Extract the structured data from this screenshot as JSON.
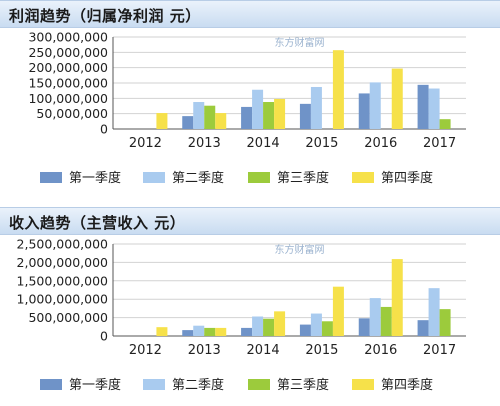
{
  "colors": {
    "q1": "#6f93c8",
    "q2": "#a9cbef",
    "q3": "#9ccb3c",
    "q4": "#f6e14a"
  },
  "profit": {
    "title": "利润趋势（归属净利润 元）",
    "watermark": "东方财富网"
  },
  "revenue": {
    "title": "收入趋势（主营收入 元）",
    "watermark": "东方财富网"
  },
  "chart_data": [
    {
      "type": "bar",
      "title": "利润趋势（归属净利润 元）",
      "categories": [
        "2012",
        "2013",
        "2014",
        "2015",
        "2016",
        "2017"
      ],
      "ylim": [
        0,
        300000000
      ],
      "yticks": [
        0,
        50000000,
        100000000,
        150000000,
        200000000,
        250000000,
        300000000
      ],
      "ytick_labels": [
        "0",
        "50,000,000",
        "100,000,000",
        "150,000,000",
        "200,000,000",
        "250,000,000",
        "300,000,000"
      ],
      "legend_position": "bottom",
      "series": [
        {
          "name": "第一季度",
          "values": [
            null,
            42000000,
            72000000,
            82000000,
            116000000,
            144000000
          ]
        },
        {
          "name": "第二季度",
          "values": [
            null,
            88000000,
            128000000,
            137000000,
            152000000,
            132000000
          ]
        },
        {
          "name": "第三季度",
          "values": [
            null,
            76000000,
            88000000,
            null,
            null,
            32000000
          ]
        },
        {
          "name": "第四季度",
          "values": [
            52000000,
            52000000,
            98000000,
            257000000,
            197000000,
            null
          ]
        }
      ]
    },
    {
      "type": "bar",
      "title": "收入趋势（主营收入 元）",
      "categories": [
        "2012",
        "2013",
        "2014",
        "2015",
        "2016",
        "2017"
      ],
      "ylim": [
        0,
        2500000000
      ],
      "yticks": [
        0,
        500000000,
        1000000000,
        1500000000,
        2000000000,
        2500000000
      ],
      "ytick_labels": [
        "0",
        "500,000,000",
        "1,000,000,000",
        "1,500,000,000",
        "2,000,000,000",
        "2,500,000,000"
      ],
      "legend_position": "bottom",
      "series": [
        {
          "name": "第一季度",
          "values": [
            null,
            160000000,
            220000000,
            310000000,
            480000000,
            430000000
          ]
        },
        {
          "name": "第二季度",
          "values": [
            null,
            280000000,
            530000000,
            610000000,
            1030000000,
            1300000000
          ]
        },
        {
          "name": "第三季度",
          "values": [
            null,
            220000000,
            470000000,
            400000000,
            790000000,
            730000000
          ]
        },
        {
          "name": "第四季度",
          "values": [
            240000000,
            220000000,
            670000000,
            1340000000,
            2090000000,
            null
          ]
        }
      ]
    }
  ]
}
